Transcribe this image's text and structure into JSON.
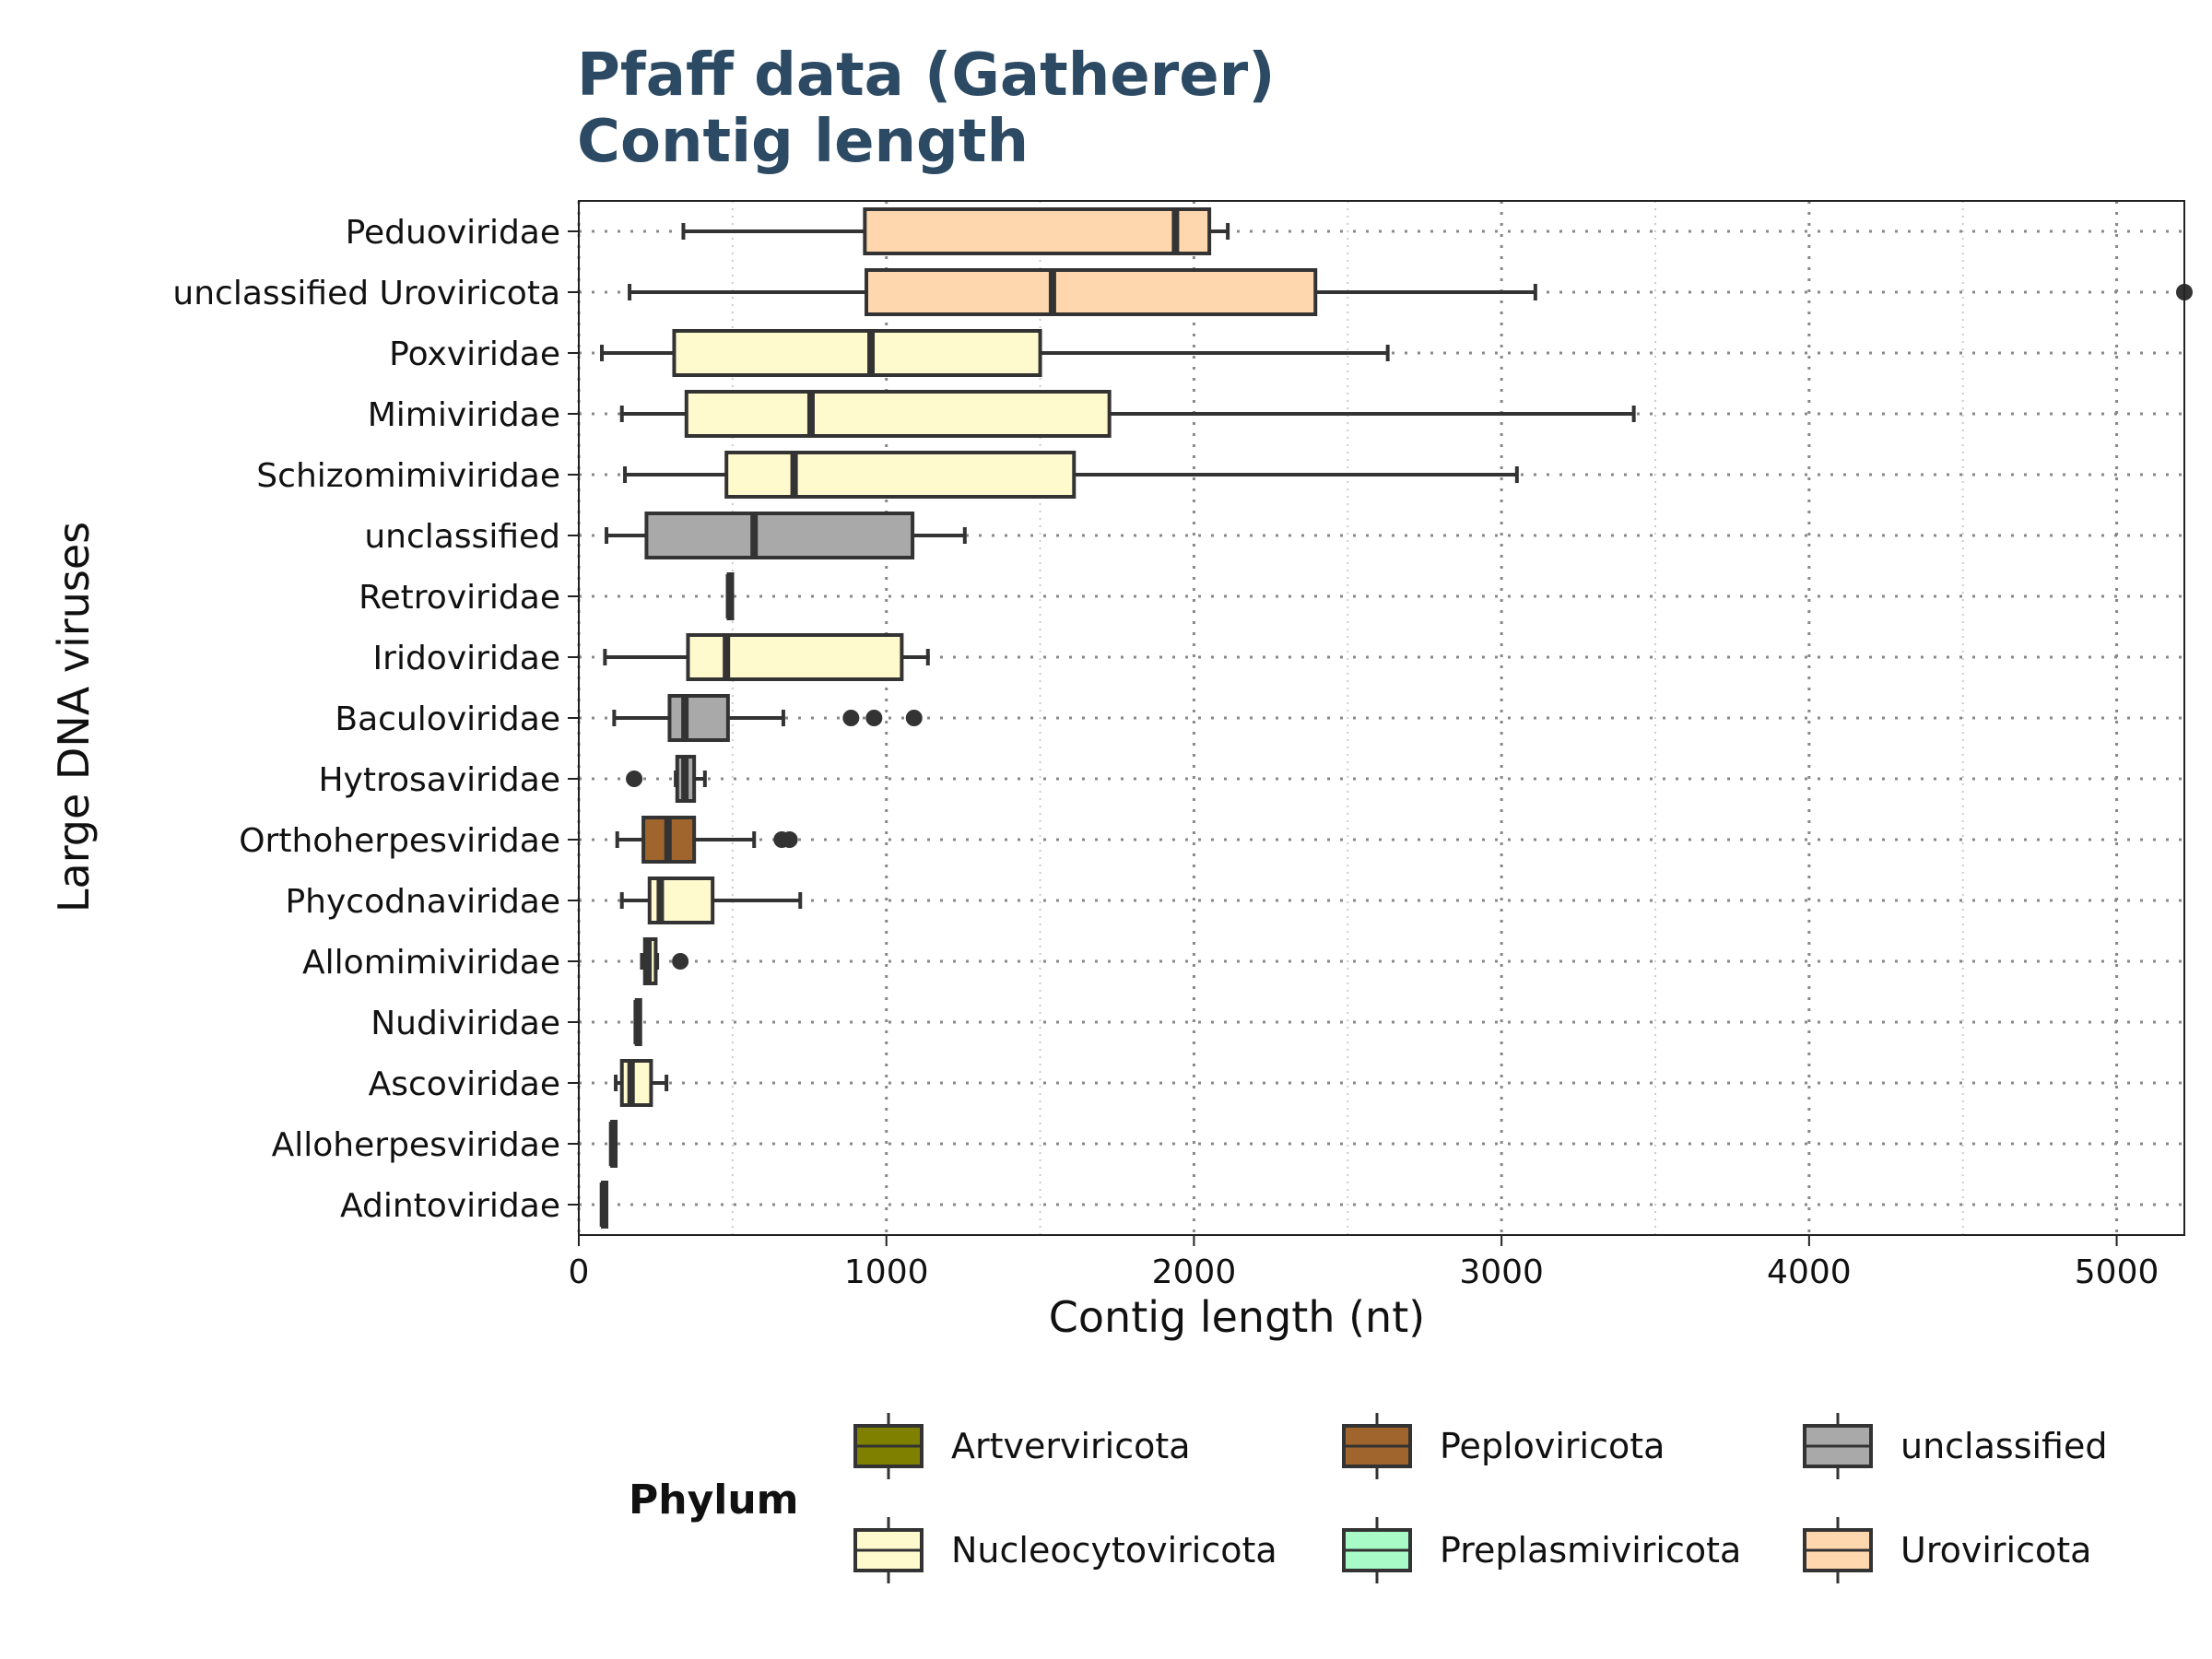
{
  "chart_data": {
    "type": "boxplot",
    "title": "Pfaff data (Gatherer)",
    "subtitle": "Contig length",
    "xlabel": "Contig length (nt)",
    "ylabel": "Large DNA viruses",
    "xlim": [
      0,
      5220
    ],
    "xticks": [
      0,
      1000,
      2000,
      3000,
      4000,
      5000
    ],
    "grid": "dotted, both axes",
    "categories": [
      "Peduoviridae",
      "unclassified Uroviricota",
      "Poxviridae",
      "Mimiviridae",
      "Schizomimiviridae",
      "unclassified",
      "Retroviridae",
      "Iridoviridae",
      "Baculoviridae",
      "Hytrosaviridae",
      "Orthoherpesviridae",
      "Phycodnaviridae",
      "Allomimiviridae",
      "Nudiviridae",
      "Ascoviridae",
      "Alloherpesviridae",
      "Adintoviridae"
    ],
    "boxes": [
      {
        "category": "Peduoviridae",
        "phylum": "Uroviricota",
        "whisker_low": 340,
        "q1": 930,
        "median": 1940,
        "q3": 2050,
        "whisker_high": 2110,
        "outliers": []
      },
      {
        "category": "unclassified Uroviricota",
        "phylum": "Uroviricota",
        "whisker_low": 165,
        "q1": 935,
        "median": 1540,
        "q3": 2395,
        "whisker_high": 3110,
        "outliers": [
          5220
        ]
      },
      {
        "category": "Poxviridae",
        "phylum": "Nucleocytoviricota",
        "whisker_low": 75,
        "q1": 310,
        "median": 950,
        "q3": 1500,
        "whisker_high": 2630,
        "outliers": []
      },
      {
        "category": "Mimiviridae",
        "phylum": "Nucleocytoviricota",
        "whisker_low": 140,
        "q1": 350,
        "median": 755,
        "q3": 1725,
        "whisker_high": 3430,
        "outliers": []
      },
      {
        "category": "Schizomimiviridae",
        "phylum": "Nucleocytoviricota",
        "whisker_low": 150,
        "q1": 480,
        "median": 700,
        "q3": 1610,
        "whisker_high": 3050,
        "outliers": []
      },
      {
        "category": "unclassified",
        "phylum": "unclassified",
        "whisker_low": 90,
        "q1": 220,
        "median": 570,
        "q3": 1085,
        "whisker_high": 1255,
        "outliers": []
      },
      {
        "category": "Retroviridae",
        "phylum": "Artverviricota",
        "whisker_low": 487,
        "q1": 487,
        "median": 490,
        "q3": 493,
        "whisker_high": 493,
        "outliers": []
      },
      {
        "category": "Iridoviridae",
        "phylum": "Nucleocytoviricota",
        "whisker_low": 85,
        "q1": 355,
        "median": 480,
        "q3": 1050,
        "whisker_high": 1135,
        "outliers": []
      },
      {
        "category": "Baculoviridae",
        "phylum": "unclassified",
        "whisker_low": 115,
        "q1": 295,
        "median": 345,
        "q3": 485,
        "whisker_high": 665,
        "outliers": [
          885,
          960,
          1090
        ]
      },
      {
        "category": "Hytrosaviridae",
        "phylum": "unclassified",
        "whisker_low": 315,
        "q1": 320,
        "median": 345,
        "q3": 375,
        "whisker_high": 410,
        "outliers": [
          180
        ]
      },
      {
        "category": "Orthoherpesviridae",
        "phylum": "Peploviricota",
        "whisker_low": 125,
        "q1": 210,
        "median": 290,
        "q3": 375,
        "whisker_high": 570,
        "outliers": [
          660,
          685
        ]
      },
      {
        "category": "Phycodnaviridae",
        "phylum": "Nucleocytoviricota",
        "whisker_low": 140,
        "q1": 230,
        "median": 265,
        "q3": 435,
        "whisker_high": 720,
        "outliers": []
      },
      {
        "category": "Allomimiviridae",
        "phylum": "Nucleocytoviricota",
        "whisker_low": 205,
        "q1": 215,
        "median": 225,
        "q3": 250,
        "whisker_high": 255,
        "outliers": [
          330
        ]
      },
      {
        "category": "Nudiviridae",
        "phylum": "unclassified",
        "whisker_low": 188,
        "q1": 188,
        "median": 190,
        "q3": 192,
        "whisker_high": 192,
        "outliers": []
      },
      {
        "category": "Ascoviridae",
        "phylum": "Nucleocytoviricota",
        "whisker_low": 120,
        "q1": 140,
        "median": 170,
        "q3": 235,
        "whisker_high": 285,
        "outliers": []
      },
      {
        "category": "Alloherpesviridae",
        "phylum": "Peploviricota",
        "whisker_low": 108,
        "q1": 108,
        "median": 110,
        "q3": 112,
        "whisker_high": 112,
        "outliers": []
      },
      {
        "category": "Adintoviridae",
        "phylum": "Preplasmiviricota",
        "whisker_low": 78,
        "q1": 78,
        "median": 80,
        "q3": 82,
        "whisker_high": 82,
        "outliers": []
      }
    ],
    "legend": {
      "title": "Phylum",
      "placement": "bottom",
      "entries": [
        {
          "label": "Artverviricota",
          "color": "#808000"
        },
        {
          "label": "Peploviricota",
          "color": "#a0642d"
        },
        {
          "label": "unclassified",
          "color": "#a9a9a9"
        },
        {
          "label": "Nucleocytoviricota",
          "color": "#fffacd"
        },
        {
          "label": "Preplasmiviricota",
          "color": "#a8fbc7"
        },
        {
          "label": "Uroviricota",
          "color": "#ffd7af"
        }
      ]
    },
    "colors": {
      "title": "#2c4a63",
      "stroke": "#333333",
      "grid": "#888888"
    }
  }
}
